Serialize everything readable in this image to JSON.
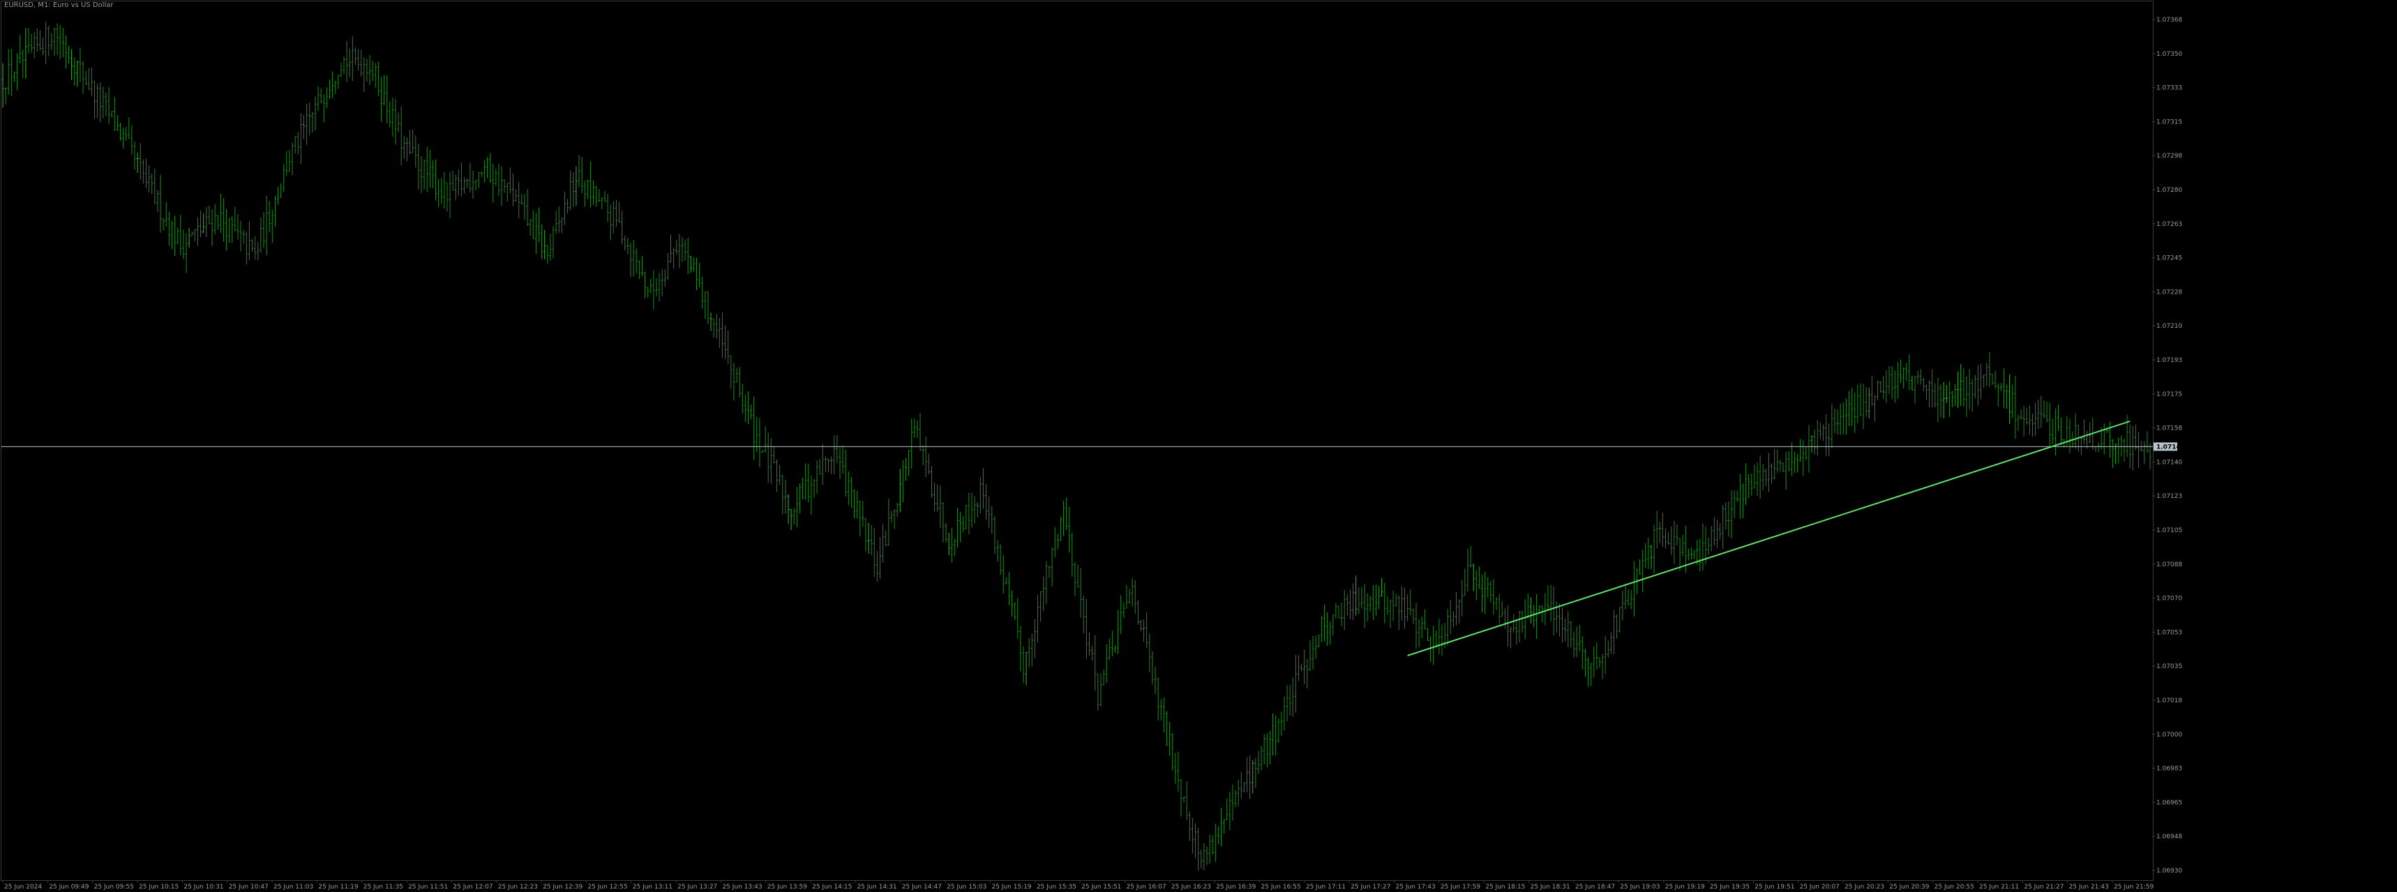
{
  "window": {
    "title": "EURUSD, M1: Euro vs US Dollar"
  },
  "price_tag": "1.07142",
  "colors": {
    "background": "#000000",
    "bar": "#1f8a1f",
    "bar_bright": "#35b835",
    "trendline": "#5fe06f",
    "bid_line": "#b8c4cc",
    "price_tag_bg": "#b8c4cc",
    "price_tag_text": "#000000",
    "axis_text": "#9a9a9a",
    "frame": "#3a3a3a"
  },
  "chart_data": {
    "type": "ohlc",
    "symbol": "EURUSD",
    "timeframe": "M1",
    "title": "EURUSD, M1: Euro vs US Dollar",
    "ylim": [
      1.0692,
      1.0737
    ],
    "y_ticks": [
      "1.07368",
      "1.07350",
      "1.07333",
      "1.07315",
      "1.07298",
      "1.07280",
      "1.07263",
      "1.07245",
      "1.07228",
      "1.07210",
      "1.07193",
      "1.07175",
      "1.07158",
      "1.07140",
      "1.07123",
      "1.07105",
      "1.07088",
      "1.07070",
      "1.07053",
      "1.07035",
      "1.07018",
      "1.07000",
      "1.06983",
      "1.06965",
      "1.06948",
      "1.06930"
    ],
    "x_ticks": [
      "25 Jun 2024",
      "25 Jun 09:49",
      "25 Jun 09:55",
      "25 Jun 10:15",
      "25 Jun 10:31",
      "25 Jun 10:47",
      "25 Jun 11:03",
      "25 Jun 11:19",
      "25 Jun 11:35",
      "25 Jun 11:51",
      "25 Jun 12:07",
      "25 Jun 12:23",
      "25 Jun 12:39",
      "25 Jun 12:55",
      "25 Jun 13:11",
      "25 Jun 13:27",
      "25 Jun 13:43",
      "25 Jun 13:59",
      "25 Jun 14:15",
      "25 Jun 14:31",
      "25 Jun 14:47",
      "25 Jun 15:03",
      "25 Jun 15:19",
      "25 Jun 15:35",
      "25 Jun 15:51",
      "25 Jun 16:07",
      "25 Jun 16:23",
      "25 Jun 16:39",
      "25 Jun 16:55",
      "25 Jun 17:11",
      "25 Jun 17:27",
      "25 Jun 17:43",
      "25 Jun 17:59",
      "25 Jun 18:15",
      "25 Jun 18:31",
      "25 Jun 18:47",
      "25 Jun 19:03",
      "25 Jun 19:19",
      "25 Jun 19:35",
      "25 Jun 19:51",
      "25 Jun 20:07",
      "25 Jun 20:23",
      "25 Jun 20:39",
      "25 Jun 20:55",
      "25 Jun 21:11",
      "25 Jun 21:27",
      "25 Jun 21:43",
      "25 Jun 21:59"
    ],
    "current_price": 1.07142,
    "price_path": {
      "index": [
        0,
        18,
        40,
        62,
        75,
        88,
        100,
        118,
        128,
        140,
        155,
        168,
        178,
        190,
        200,
        215,
        226,
        236,
        248,
        262,
        275,
        290,
        305,
        318,
        330,
        342,
        356,
        370,
        382,
        394,
        404,
        418,
        430,
        445,
        460,
        474,
        488,
        500,
        512,
        526,
        540,
        555,
        566,
        578,
        592,
        606,
        620,
        634,
        650,
        662,
        678,
        692,
        706,
        720,
        734,
        748
      ],
      "close": [
        1.0733,
        1.07355,
        1.07305,
        1.07245,
        1.0726,
        1.0724,
        1.0729,
        1.0734,
        1.07338,
        1.07295,
        1.0727,
        1.07285,
        1.0727,
        1.0724,
        1.0728,
        1.07255,
        1.0722,
        1.07248,
        1.07205,
        1.0715,
        1.0711,
        1.0714,
        1.0708,
        1.0715,
        1.07095,
        1.0712,
        1.0703,
        1.0711,
        1.07015,
        1.0707,
        1.07005,
        1.0693,
        1.0696,
        1.07,
        1.0705,
        1.07065,
        1.0706,
        1.0704,
        1.0708,
        1.0705,
        1.0706,
        1.0703,
        1.0706,
        1.071,
        1.07085,
        1.0712,
        1.0713,
        1.07148,
        1.07165,
        1.0718,
        1.07165,
        1.07178,
        1.07155,
        1.0715,
        1.07145,
        1.07142
      ],
      "bars": 750
    },
    "trendline": {
      "start": {
        "bar_index": 490,
        "price": 1.07035
      },
      "end": {
        "bar_index": 742,
        "price": 1.07155
      }
    }
  }
}
